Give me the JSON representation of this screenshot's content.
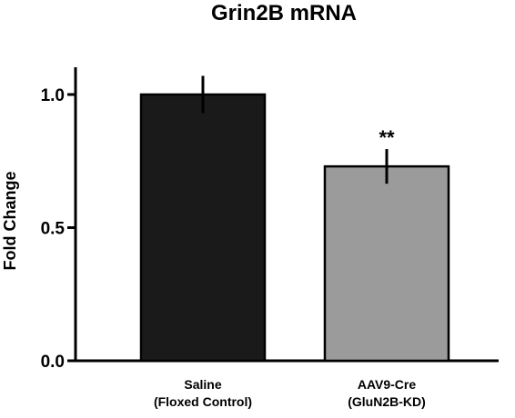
{
  "chart_data": {
    "type": "bar",
    "title": "Grin2B mRNA",
    "ylabel": "Fold Change",
    "xlabel": "",
    "ylim": [
      0,
      1.0
    ],
    "yticks": [
      0.0,
      0.5,
      1.0
    ],
    "ytick_labels": [
      "0.0",
      "0.5",
      "1.0"
    ],
    "categories": [
      {
        "line1": "Saline",
        "line2": "(Floxed Control)"
      },
      {
        "line1": "AAV9-Cre",
        "line2": "(GluN2B-KD)"
      }
    ],
    "values": [
      1.0,
      0.73
    ],
    "error": [
      0.07,
      0.065
    ],
    "bar_colors": [
      "#1a1a1a",
      "#9b9b9b"
    ],
    "annotations": [
      {
        "category_index": 1,
        "text": "**"
      }
    ],
    "grid": false,
    "legend": "none"
  }
}
